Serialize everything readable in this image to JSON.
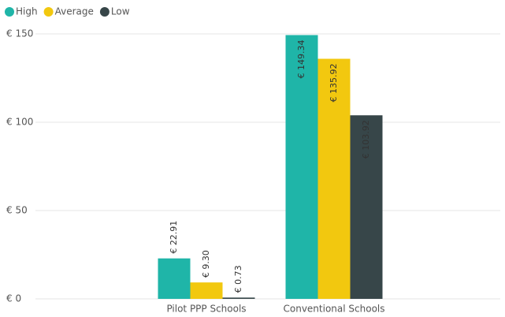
{
  "chart_data": {
    "type": "bar",
    "categories": [
      "Pilot PPP Schools",
      "Conventional Schools"
    ],
    "series": [
      {
        "name": "High",
        "color": "#1fb5a8",
        "values": [
          22.91,
          149.34
        ],
        "value_labels": [
          "€ 22.91",
          "€ 149.34"
        ]
      },
      {
        "name": "Average",
        "color": "#f2c80f",
        "values": [
          9.3,
          135.92
        ],
        "value_labels": [
          "€ 9.30",
          "€ 135.92"
        ]
      },
      {
        "name": "Low",
        "color": "#374649",
        "values": [
          0.73,
          103.92
        ],
        "value_labels": [
          "€ 0.73",
          "€ 103.92"
        ]
      }
    ],
    "ylim": [
      0,
      150
    ],
    "yticks": [
      {
        "value": 0,
        "label": "€ 0"
      },
      {
        "value": 50,
        "label": "€ 50"
      },
      {
        "value": 100,
        "label": "€ 100"
      },
      {
        "value": 150,
        "label": "€ 150"
      }
    ],
    "grid": true,
    "legend": "top-left"
  }
}
